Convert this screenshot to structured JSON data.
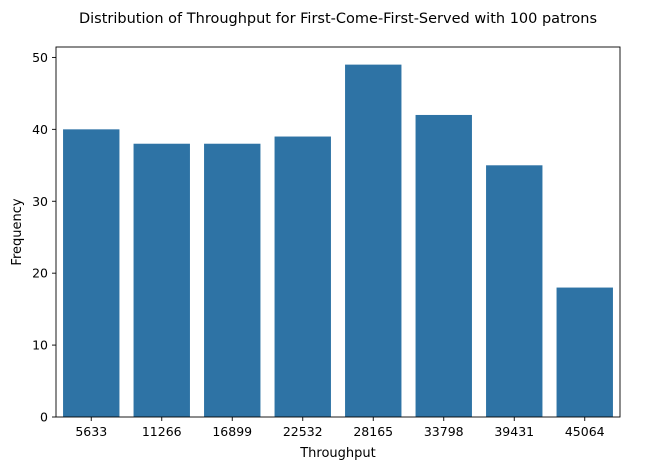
{
  "chart_data": {
    "type": "bar",
    "title": "Distribution of Throughput for First-Come-First-Served with 100 patrons",
    "xlabel": "Throughput",
    "ylabel": "Frequency",
    "categories": [
      "5633",
      "11266",
      "16899",
      "22532",
      "28165",
      "33798",
      "39431",
      "45064"
    ],
    "values": [
      40,
      38,
      38,
      39,
      49,
      42,
      35,
      18
    ],
    "ylim": [
      0,
      51.45
    ],
    "yticks": [
      0,
      10,
      20,
      30,
      40,
      50
    ],
    "bar_color": "#2e73a5",
    "grid": false,
    "legend": "none"
  }
}
